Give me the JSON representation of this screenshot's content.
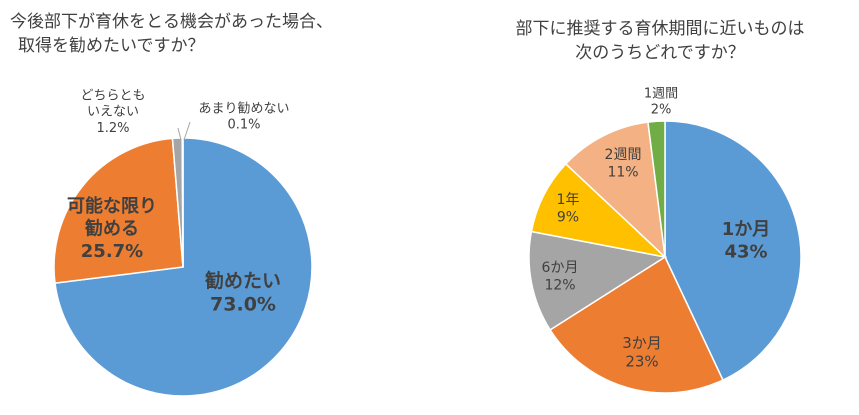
{
  "chart_data": [
    {
      "type": "pie",
      "title_lines": [
        "今後部下が育休をとる機会があった場合、",
        "取得を勧めたいですか？"
      ],
      "slices": [
        {
          "label_lines": [
            "勧めたい"
          ],
          "pct_text": "73.0%",
          "value": 73.0,
          "color": "#5B9BD5"
        },
        {
          "label_lines": [
            "可能な限り",
            "勧める"
          ],
          "pct_text": "25.7%",
          "value": 25.7,
          "color": "#ED7D31"
        },
        {
          "label_lines": [
            "どちらとも",
            "いえない"
          ],
          "pct_text": "1.2%",
          "value": 1.2,
          "color": "#A5A5A5"
        },
        {
          "label_lines": [
            "あまり勧めない"
          ],
          "pct_text": "0.1%",
          "value": 0.1,
          "color": "#FFC000"
        }
      ]
    },
    {
      "type": "pie",
      "title_lines": [
        "部下に推奨する育休期間に近いものは",
        "次のうちどれですか？"
      ],
      "slices": [
        {
          "label_lines": [
            "1か月"
          ],
          "pct_text": "43%",
          "value": 43,
          "color": "#5B9BD5"
        },
        {
          "label_lines": [
            "3か月"
          ],
          "pct_text": "23%",
          "value": 23,
          "color": "#ED7D31"
        },
        {
          "label_lines": [
            "6か月"
          ],
          "pct_text": "12%",
          "value": 12,
          "color": "#A5A5A5"
        },
        {
          "label_lines": [
            "1年"
          ],
          "pct_text": "9%",
          "value": 9,
          "color": "#FFC000"
        },
        {
          "label_lines": [
            "2週間"
          ],
          "pct_text": "11%",
          "value": 11,
          "color": "#F4B183"
        },
        {
          "label_lines": [
            "1週間"
          ],
          "pct_text": "2%",
          "value": 2,
          "color": "#70AD47"
        }
      ]
    }
  ]
}
